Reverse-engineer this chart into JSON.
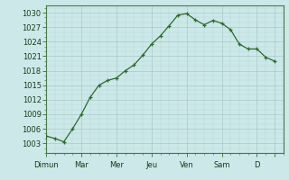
{
  "x_points": [
    0,
    0.5,
    1.0,
    1.5,
    2.0,
    2.5,
    3.0,
    3.5,
    4.0,
    4.5,
    5.0,
    5.5,
    6.0,
    6.5,
    7.0,
    7.5,
    8.0,
    8.5,
    9.0,
    9.5,
    10.0,
    10.5,
    11.0,
    11.5,
    12.0,
    12.5,
    13.0
  ],
  "y_points": [
    1004.5,
    1004.0,
    1003.3,
    1006.0,
    1009.0,
    1012.5,
    1015.0,
    1016.0,
    1016.5,
    1018.0,
    1019.2,
    1021.2,
    1023.5,
    1025.2,
    1027.3,
    1029.5,
    1029.8,
    1028.5,
    1027.5,
    1028.4,
    1027.8,
    1026.5,
    1023.5,
    1022.5,
    1022.5,
    1020.8,
    1020.0
  ],
  "x_tick_positions": [
    0,
    2,
    4,
    6,
    8,
    10,
    12,
    13
  ],
  "x_tick_labels": [
    "Dimun",
    "Mar",
    "Mer",
    "Jeu",
    "Ven",
    "Sam",
    "D",
    ""
  ],
  "y_ticks": [
    1003,
    1006,
    1009,
    1012,
    1015,
    1018,
    1021,
    1024,
    1027,
    1030
  ],
  "y_min": 1001,
  "y_max": 1031.5,
  "x_min": 0,
  "x_max": 13.5,
  "line_color": "#2d6a2d",
  "bg_color": "#cce8e8",
  "grid_major_color": "#a8c8c8",
  "grid_minor_color": "#b8d8d8",
  "spine_color": "#4a7a4a",
  "tick_fontsize": 6,
  "line_width": 0.9,
  "marker_size": 3.0
}
